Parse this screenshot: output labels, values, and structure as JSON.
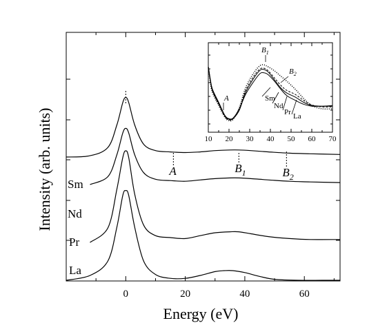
{
  "chart_data": [
    {
      "type": "line",
      "title": "",
      "xlabel": "Energy (eV)",
      "ylabel": "Intensity (arb. units)",
      "xlim": [
        -20,
        72
      ],
      "x_ticks": [
        0,
        20,
        40,
        60
      ],
      "y_ticks_labeled": false,
      "grid": false,
      "legend": "none",
      "series": [
        {
          "name": "Sm",
          "x": [
            -20,
            -12,
            -6,
            -3,
            -1,
            0,
            1,
            3,
            6,
            10,
            15,
            20,
            25,
            30,
            35,
            38,
            42,
            48,
            55,
            62,
            72
          ],
          "y": [
            0.0,
            0.02,
            0.15,
            0.5,
            0.85,
            0.93,
            0.85,
            0.5,
            0.2,
            0.1,
            0.08,
            0.07,
            0.08,
            0.1,
            0.11,
            0.11,
            0.1,
            0.08,
            0.06,
            0.05,
            0.04
          ]
        },
        {
          "name": "Nd",
          "x": [
            -12,
            -6,
            -3,
            -1,
            0,
            1,
            3,
            6,
            10,
            15,
            20,
            25,
            30,
            35,
            38,
            42,
            48,
            55,
            62,
            72
          ],
          "y": [
            0.0,
            0.12,
            0.45,
            0.78,
            0.85,
            0.78,
            0.45,
            0.18,
            0.08,
            0.06,
            0.05,
            0.07,
            0.09,
            0.1,
            0.1,
            0.09,
            0.07,
            0.05,
            0.04,
            0.03
          ]
        },
        {
          "name": "Pr",
          "x": [
            -12,
            -6,
            -3,
            -1,
            0,
            1,
            3,
            6,
            10,
            15,
            20,
            25,
            30,
            35,
            38,
            42,
            48,
            55,
            62,
            72
          ],
          "y": [
            0.0,
            0.15,
            0.55,
            0.88,
            0.95,
            0.88,
            0.5,
            0.18,
            0.07,
            0.05,
            0.04,
            0.07,
            0.1,
            0.11,
            0.11,
            0.09,
            0.06,
            0.04,
            0.03,
            0.03
          ]
        },
        {
          "name": "La",
          "x": [
            -20,
            -12,
            -6,
            -3,
            -1,
            0,
            1,
            3,
            6,
            10,
            15,
            20,
            25,
            30,
            33,
            36,
            40,
            45,
            50,
            58,
            66,
            72
          ],
          "y": [
            0.0,
            0.05,
            0.2,
            0.55,
            0.88,
            0.93,
            0.88,
            0.55,
            0.2,
            0.06,
            0.02,
            0.02,
            0.05,
            0.09,
            0.1,
            0.1,
            0.08,
            0.04,
            0.01,
            0.0,
            0.0,
            0.0
          ]
        }
      ],
      "annotations": [
        {
          "text": "A",
          "x": 16
        },
        {
          "text": "B",
          "sub": "1",
          "x": 38
        },
        {
          "text": "B",
          "sub": "2",
          "x": 54
        }
      ]
    },
    {
      "type": "line",
      "title": "",
      "xlabel": "",
      "ylabel": "",
      "xlim": [
        10,
        70
      ],
      "x_ticks": [
        10,
        20,
        30,
        40,
        50,
        60,
        70
      ],
      "grid": false,
      "legend": "none",
      "series": [
        {
          "name": "Sm",
          "x": [
            10,
            11,
            12,
            15,
            18,
            20,
            22,
            25,
            28,
            32,
            35,
            37,
            39,
            42,
            45,
            48,
            52,
            56,
            60,
            65,
            70
          ],
          "y": [
            0.85,
            0.65,
            0.5,
            0.3,
            0.1,
            0.05,
            0.06,
            0.2,
            0.42,
            0.62,
            0.74,
            0.75,
            0.72,
            0.62,
            0.5,
            0.4,
            0.33,
            0.27,
            0.24,
            0.24,
            0.25
          ]
        },
        {
          "name": "Nd",
          "x": [
            10,
            11,
            12,
            15,
            18,
            20,
            22,
            25,
            28,
            32,
            35,
            37,
            39,
            42,
            45,
            48,
            52,
            56,
            60,
            65,
            70
          ],
          "y": [
            0.84,
            0.63,
            0.48,
            0.28,
            0.09,
            0.04,
            0.05,
            0.18,
            0.45,
            0.67,
            0.79,
            0.8,
            0.76,
            0.64,
            0.52,
            0.44,
            0.38,
            0.3,
            0.25,
            0.24,
            0.24
          ]
        },
        {
          "name": "Pr",
          "x": [
            10,
            11,
            12,
            15,
            18,
            20,
            22,
            25,
            28,
            32,
            35,
            37,
            39,
            42,
            45,
            48,
            52,
            56,
            60,
            65,
            70
          ],
          "y": [
            0.84,
            0.62,
            0.47,
            0.27,
            0.08,
            0.03,
            0.05,
            0.2,
            0.48,
            0.7,
            0.81,
            0.82,
            0.78,
            0.67,
            0.56,
            0.48,
            0.42,
            0.33,
            0.26,
            0.23,
            0.23
          ]
        },
        {
          "name": "La",
          "x": [
            10,
            11,
            12,
            15,
            18,
            20,
            22,
            25,
            28,
            32,
            35,
            37,
            39,
            42,
            45,
            48,
            52,
            56,
            60,
            65,
            70
          ],
          "y": [
            0.83,
            0.6,
            0.45,
            0.25,
            0.07,
            0.02,
            0.04,
            0.22,
            0.52,
            0.75,
            0.86,
            0.87,
            0.84,
            0.78,
            0.7,
            0.62,
            0.5,
            0.36,
            0.25,
            0.2,
            0.2
          ]
        }
      ],
      "annotations": [
        {
          "text": "A",
          "x": 17
        },
        {
          "text": "B",
          "sub": "1",
          "x": 37
        },
        {
          "text": "B",
          "sub": "2",
          "x": 47
        }
      ]
    }
  ]
}
